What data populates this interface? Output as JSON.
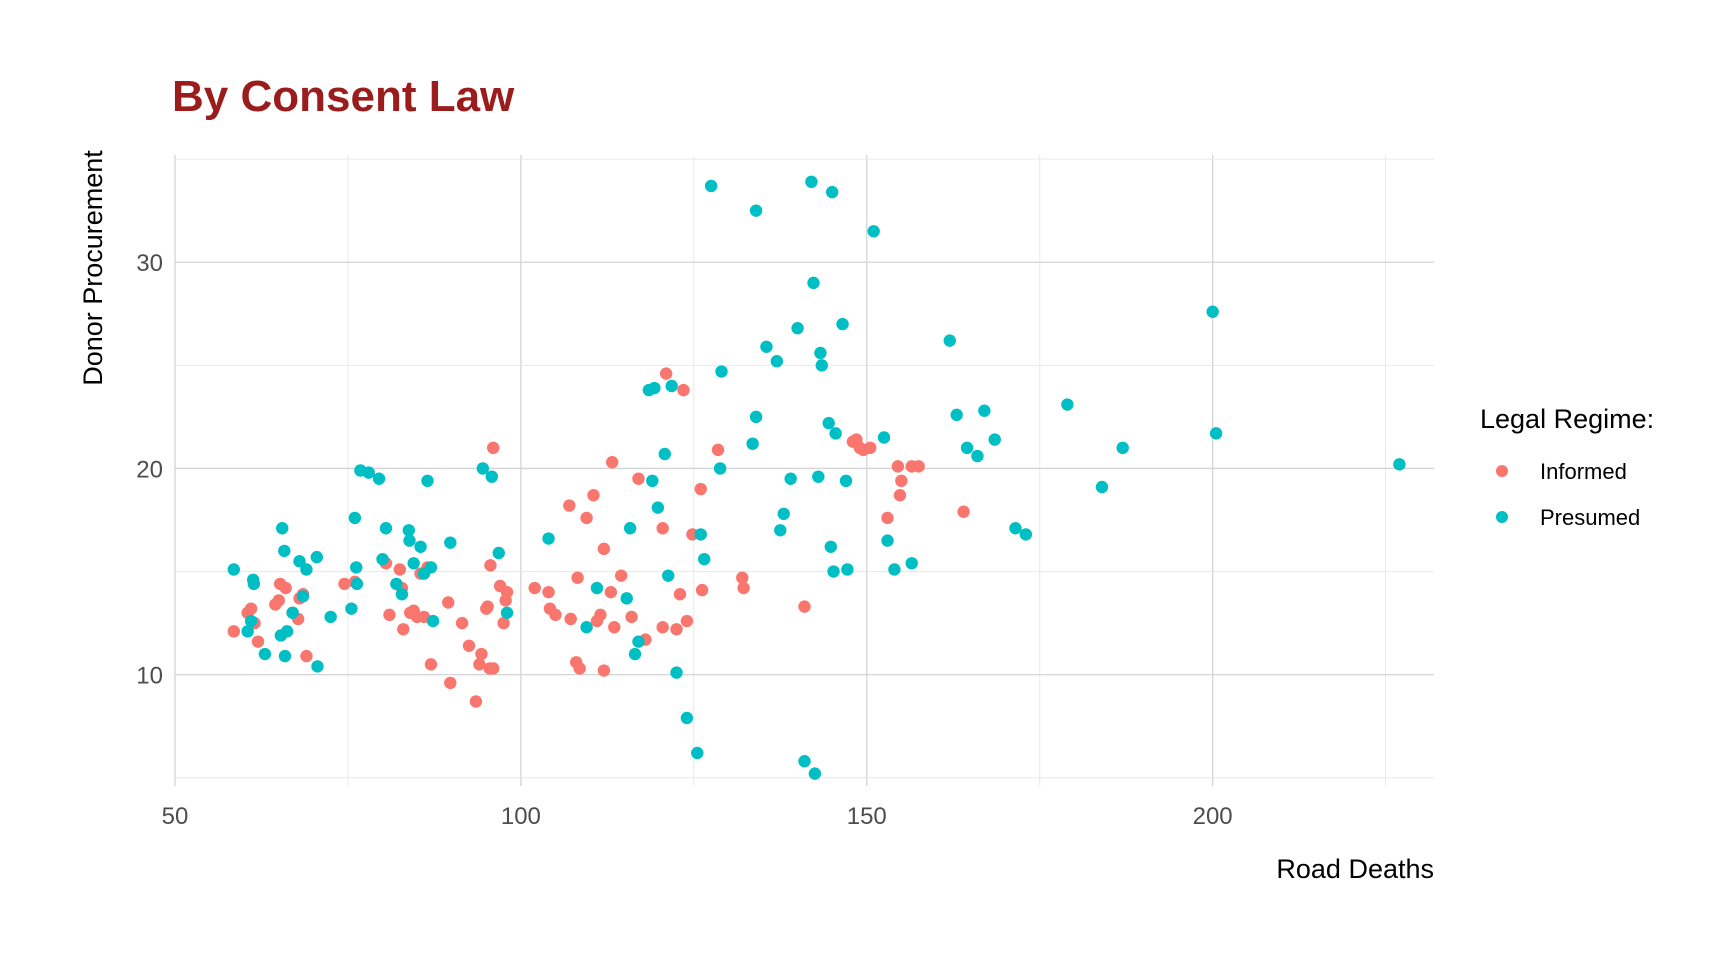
{
  "chart_data": {
    "type": "scatter",
    "title": "By Consent Law",
    "xlabel": "Road Deaths",
    "ylabel": "Donor Procurement",
    "xlim": [
      50,
      232
    ],
    "ylim": [
      4.6,
      35.2
    ],
    "xticks": [
      50,
      100,
      150,
      200
    ],
    "yticks": [
      10,
      20,
      30
    ],
    "grid": true,
    "legend": {
      "title": "Legal Regime:",
      "position": "right"
    },
    "series": [
      {
        "name": "Informed",
        "color": "#F8766D",
        "points": [
          [
            58.5,
            12.1
          ],
          [
            60.5,
            13.0
          ],
          [
            61.0,
            13.2
          ],
          [
            61.5,
            12.5
          ],
          [
            62.0,
            11.6
          ],
          [
            64.5,
            13.4
          ],
          [
            65.0,
            13.6
          ],
          [
            65.2,
            14.4
          ],
          [
            66.0,
            14.2
          ],
          [
            67.0,
            13.0
          ],
          [
            67.8,
            12.7
          ],
          [
            68.0,
            13.7
          ],
          [
            68.5,
            13.9
          ],
          [
            69.0,
            10.9
          ],
          [
            74.5,
            14.4
          ],
          [
            76.0,
            14.5
          ],
          [
            80.5,
            15.4
          ],
          [
            81.0,
            12.9
          ],
          [
            82.5,
            15.1
          ],
          [
            82.8,
            14.2
          ],
          [
            83.0,
            12.2
          ],
          [
            84.0,
            13.0
          ],
          [
            84.5,
            13.1
          ],
          [
            85.0,
            12.8
          ],
          [
            85.5,
            14.9
          ],
          [
            86.0,
            12.8
          ],
          [
            86.5,
            15.2
          ],
          [
            87.0,
            10.5
          ],
          [
            89.5,
            13.5
          ],
          [
            89.8,
            9.6
          ],
          [
            91.5,
            12.5
          ],
          [
            92.5,
            11.4
          ],
          [
            93.5,
            8.7
          ],
          [
            94.0,
            10.5
          ],
          [
            94.3,
            11.0
          ],
          [
            95.0,
            13.2
          ],
          [
            95.2,
            13.3
          ],
          [
            95.5,
            10.3
          ],
          [
            95.6,
            15.3
          ],
          [
            96.0,
            21.0
          ],
          [
            96.0,
            10.3
          ],
          [
            97.0,
            14.3
          ],
          [
            97.5,
            12.5
          ],
          [
            97.8,
            13.6
          ],
          [
            98.0,
            14.0
          ],
          [
            102.0,
            14.2
          ],
          [
            104.0,
            14.0
          ],
          [
            104.2,
            13.2
          ],
          [
            105.0,
            12.9
          ],
          [
            107.0,
            18.2
          ],
          [
            107.2,
            12.7
          ],
          [
            108.0,
            10.6
          ],
          [
            108.2,
            14.7
          ],
          [
            108.5,
            10.3
          ],
          [
            109.5,
            17.6
          ],
          [
            110.5,
            18.7
          ],
          [
            111.0,
            12.6
          ],
          [
            111.5,
            12.9
          ],
          [
            112.0,
            16.1
          ],
          [
            112.0,
            10.2
          ],
          [
            113.0,
            14.0
          ],
          [
            113.2,
            20.3
          ],
          [
            113.5,
            12.3
          ],
          [
            114.5,
            14.8
          ],
          [
            116.0,
            12.8
          ],
          [
            117.0,
            19.5
          ],
          [
            118.0,
            11.7
          ],
          [
            120.5,
            12.3
          ],
          [
            120.5,
            17.1
          ],
          [
            121.0,
            24.6
          ],
          [
            122.5,
            12.2
          ],
          [
            123.0,
            13.9
          ],
          [
            123.5,
            23.8
          ],
          [
            124.0,
            12.6
          ],
          [
            124.8,
            16.8
          ],
          [
            126.0,
            19.0
          ],
          [
            126.2,
            14.1
          ],
          [
            128.5,
            20.9
          ],
          [
            132.0,
            14.7
          ],
          [
            132.2,
            14.2
          ],
          [
            141.0,
            13.3
          ],
          [
            148.0,
            21.3
          ],
          [
            148.5,
            21.4
          ],
          [
            149.0,
            21.0
          ],
          [
            149.5,
            20.9
          ],
          [
            150.5,
            21.0
          ],
          [
            153.0,
            17.6
          ],
          [
            154.5,
            20.1
          ],
          [
            154.8,
            18.7
          ],
          [
            155.0,
            19.4
          ],
          [
            156.5,
            20.1
          ],
          [
            157.5,
            20.1
          ],
          [
            164.0,
            17.9
          ]
        ]
      },
      {
        "name": "Presumed",
        "color": "#00BFC4",
        "points": [
          [
            58.5,
            15.1
          ],
          [
            60.5,
            12.1
          ],
          [
            61.0,
            12.6
          ],
          [
            61.3,
            14.6
          ],
          [
            61.4,
            14.4
          ],
          [
            63.0,
            11.0
          ],
          [
            65.3,
            11.9
          ],
          [
            65.5,
            17.1
          ],
          [
            65.8,
            16.0
          ],
          [
            65.9,
            10.9
          ],
          [
            66.2,
            12.1
          ],
          [
            67.0,
            13.0
          ],
          [
            68.0,
            15.5
          ],
          [
            68.5,
            13.8
          ],
          [
            69.0,
            15.1
          ],
          [
            70.5,
            15.7
          ],
          [
            70.6,
            10.4
          ],
          [
            72.5,
            12.8
          ],
          [
            75.5,
            13.2
          ],
          [
            76.0,
            17.6
          ],
          [
            76.2,
            15.2
          ],
          [
            76.3,
            14.4
          ],
          [
            76.8,
            19.9
          ],
          [
            78.0,
            19.8
          ],
          [
            79.5,
            19.5
          ],
          [
            80.0,
            15.6
          ],
          [
            80.5,
            17.1
          ],
          [
            82.0,
            14.4
          ],
          [
            82.8,
            13.9
          ],
          [
            83.8,
            17.0
          ],
          [
            83.9,
            16.5
          ],
          [
            84.5,
            15.4
          ],
          [
            85.5,
            16.2
          ],
          [
            86.0,
            14.9
          ],
          [
            86.5,
            19.4
          ],
          [
            87.0,
            15.2
          ],
          [
            87.3,
            12.6
          ],
          [
            89.8,
            16.4
          ],
          [
            94.5,
            20.0
          ],
          [
            95.8,
            19.6
          ],
          [
            96.8,
            15.9
          ],
          [
            98.0,
            13.0
          ],
          [
            104.0,
            16.6
          ],
          [
            109.5,
            12.3
          ],
          [
            111.0,
            14.2
          ],
          [
            115.3,
            13.7
          ],
          [
            115.8,
            17.1
          ],
          [
            116.5,
            11.0
          ],
          [
            117.0,
            11.6
          ],
          [
            118.5,
            23.8
          ],
          [
            119.0,
            19.4
          ],
          [
            119.3,
            23.9
          ],
          [
            119.8,
            18.1
          ],
          [
            120.8,
            20.7
          ],
          [
            121.3,
            14.8
          ],
          [
            121.8,
            24.0
          ],
          [
            122.5,
            10.1
          ],
          [
            124.0,
            7.9
          ],
          [
            125.5,
            6.2
          ],
          [
            126.0,
            16.8
          ],
          [
            126.5,
            15.6
          ],
          [
            127.5,
            33.7
          ],
          [
            128.8,
            20.0
          ],
          [
            129.0,
            24.7
          ],
          [
            133.5,
            21.2
          ],
          [
            134.0,
            32.5
          ],
          [
            134.0,
            22.5
          ],
          [
            135.5,
            25.9
          ],
          [
            137.0,
            25.2
          ],
          [
            137.5,
            17.0
          ],
          [
            138.0,
            17.8
          ],
          [
            139.0,
            19.5
          ],
          [
            140.0,
            26.8
          ],
          [
            141.0,
            5.8
          ],
          [
            142.0,
            33.9
          ],
          [
            142.3,
            29.0
          ],
          [
            142.5,
            5.2
          ],
          [
            143.0,
            19.6
          ],
          [
            143.3,
            25.6
          ],
          [
            143.5,
            25.0
          ],
          [
            144.5,
            22.2
          ],
          [
            144.8,
            16.2
          ],
          [
            145.0,
            33.4
          ],
          [
            145.2,
            15.0
          ],
          [
            145.5,
            21.7
          ],
          [
            146.5,
            27.0
          ],
          [
            147.0,
            19.4
          ],
          [
            147.2,
            15.1
          ],
          [
            151.0,
            31.5
          ],
          [
            152.5,
            21.5
          ],
          [
            153.0,
            16.5
          ],
          [
            154.0,
            15.1
          ],
          [
            156.5,
            15.4
          ],
          [
            162.0,
            26.2
          ],
          [
            163.0,
            22.6
          ],
          [
            164.5,
            21.0
          ],
          [
            166.0,
            20.6
          ],
          [
            167.0,
            22.8
          ],
          [
            168.5,
            21.4
          ],
          [
            171.5,
            17.1
          ],
          [
            173.0,
            16.8
          ],
          [
            179.0,
            23.1
          ],
          [
            184.0,
            19.1
          ],
          [
            187.0,
            21.0
          ],
          [
            200.0,
            27.6
          ],
          [
            200.5,
            21.7
          ],
          [
            227.0,
            20.2
          ]
        ]
      }
    ]
  }
}
